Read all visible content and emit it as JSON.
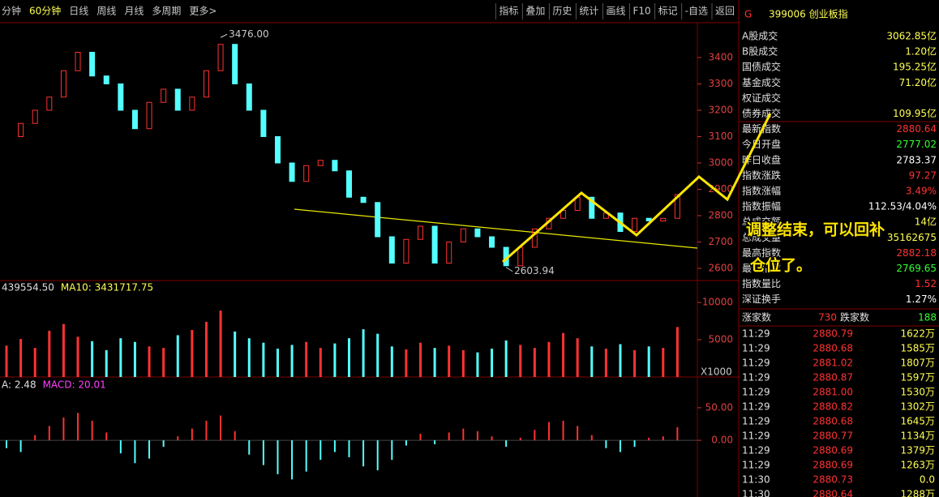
{
  "toolbar": {
    "periods": [
      "分钟",
      "60分钟",
      "日线",
      "周线",
      "月线",
      "多周期",
      "更多>"
    ],
    "buttons": [
      "指标",
      "叠加",
      "历史",
      "统计",
      "画线",
      "F10",
      "标记",
      "-自选",
      "返回"
    ]
  },
  "chart_data": {
    "type": "candlestick",
    "closes": [
      3100,
      3150,
      3200,
      3250,
      3350,
      3420,
      3330,
      3300,
      3200,
      3130,
      3230,
      3280,
      3200,
      3250,
      3350,
      3450,
      3300,
      3200,
      3100,
      3000,
      2930,
      2990,
      3010,
      2970,
      2870,
      2850,
      2720,
      2620,
      2710,
      2760,
      2620,
      2700,
      2750,
      2720,
      2680,
      2610,
      2680,
      2750,
      2790,
      2820,
      2870,
      2790,
      2810,
      2740,
      2790,
      2780,
      2790,
      2880
    ],
    "up_color": "#ff3232",
    "down_color": "#54ffff",
    "ylim": [
      2557,
      3526
    ],
    "yticks": [
      2600,
      2700,
      2800,
      2900,
      3000,
      3100,
      3200,
      3300,
      3400
    ],
    "high_label": {
      "value": 3476.0,
      "label": "3476.00"
    },
    "low_label": {
      "value": 2603.94,
      "label": "2603.94"
    },
    "volume": {
      "header": "439554.50",
      "ma_label": "MA10: 3431717.75",
      "unit": "X1000",
      "ylim": [
        0,
        10870
      ],
      "yticks": [
        5000,
        10000
      ],
      "values": [
        4200,
        5100,
        3900,
        6200,
        7100,
        5400,
        4800,
        3600,
        5200,
        4700,
        4100,
        3900,
        5600,
        6300,
        7400,
        8900,
        6100,
        5200,
        4600,
        3800,
        4300,
        4700,
        3900,
        4500,
        5200,
        6400,
        5800,
        4100,
        3700,
        4600,
        3900,
        4200,
        3600,
        3300,
        3800,
        4900,
        4300,
        3900,
        4700,
        5900,
        5200,
        4100,
        3800,
        4400,
        3600,
        4100,
        3900,
        6700
      ]
    },
    "macd": {
      "header": "A: 2.48",
      "macd_label": "MACD: 20.01",
      "ylim": [
        -87,
        76
      ],
      "yticks": [
        {
          "value": 50,
          "label": "50.00"
        },
        {
          "value": 0,
          "label": "0.00"
        }
      ],
      "values": [
        -12,
        -18,
        8,
        22,
        35,
        42,
        30,
        12,
        -20,
        -35,
        -28,
        -10,
        6,
        18,
        30,
        38,
        14,
        -22,
        -38,
        -52,
        -60,
        -48,
        -30,
        -18,
        -26,
        -40,
        -46,
        -30,
        -8,
        10,
        -6,
        12,
        18,
        14,
        6,
        -10,
        4,
        16,
        28,
        30,
        22,
        8,
        -12,
        -18,
        -10,
        4,
        6,
        20
      ]
    }
  },
  "quote": {
    "flag": "G",
    "title": "399006 创业板指",
    "rows": [
      {
        "label": "A股成交",
        "value": "3062.85亿",
        "color": "#ffff54"
      },
      {
        "label": "B股成交",
        "value": "1.20亿",
        "color": "#ffff54"
      },
      {
        "label": "国债成交",
        "value": "195.25亿",
        "color": "#ffff54"
      },
      {
        "label": "基金成交",
        "value": "71.20亿",
        "color": "#ffff54"
      },
      {
        "label": "权证成交",
        "value": "",
        "color": "#ffff54"
      },
      {
        "label": "债券成交",
        "value": "109.95亿",
        "color": "#ffff54"
      },
      {
        "label": "最新指数",
        "value": "2880.64",
        "color": "#ff3232"
      },
      {
        "label": "今日开盘",
        "value": "2777.02",
        "color": "#32ff32"
      },
      {
        "label": "昨日收盘",
        "value": "2783.37",
        "color": "#ffffff"
      },
      {
        "label": "指数涨跌",
        "value": "97.27",
        "color": "#ff3232"
      },
      {
        "label": "指数涨幅",
        "value": "3.49%",
        "color": "#ff3232"
      },
      {
        "label": "指数振幅",
        "value": "112.53/4.04%",
        "color": "#ffffff"
      },
      {
        "label": "总成交额",
        "value": "14亿",
        "color": "#ffff54"
      },
      {
        "label": "总成交量",
        "value": "35162675",
        "color": "#ffff54"
      },
      {
        "label": "最高指数",
        "value": "2882.18",
        "color": "#ff3232"
      },
      {
        "label": "最低指数",
        "value": "2769.65",
        "color": "#32ff32"
      },
      {
        "label": "指数量比",
        "value": "1.52",
        "color": "#ff3232"
      },
      {
        "label": "深证换手",
        "value": "1.27%",
        "color": "#ffffff"
      }
    ],
    "up_label": "涨家数",
    "up_count": "730",
    "down_label": "跌家数",
    "down_count": "188",
    "trades": [
      [
        "11:29",
        "2880.79",
        "1622万"
      ],
      [
        "11:29",
        "2880.68",
        "1585万"
      ],
      [
        "11:29",
        "2881.02",
        "1807万"
      ],
      [
        "11:29",
        "2880.87",
        "1597万"
      ],
      [
        "11:29",
        "2881.00",
        "1530万"
      ],
      [
        "11:29",
        "2880.82",
        "1302万"
      ],
      [
        "11:29",
        "2880.68",
        "1645万"
      ],
      [
        "11:29",
        "2880.77",
        "1134万"
      ],
      [
        "11:29",
        "2880.69",
        "1379万"
      ],
      [
        "11:29",
        "2880.69",
        "1263万"
      ],
      [
        "11:30",
        "2880.73",
        "0.0"
      ],
      [
        "11:30",
        "2880.64",
        "1288万"
      ]
    ]
  },
  "annotation": {
    "line1": "调整结束，可以回补",
    "line2": "仓位了。"
  }
}
